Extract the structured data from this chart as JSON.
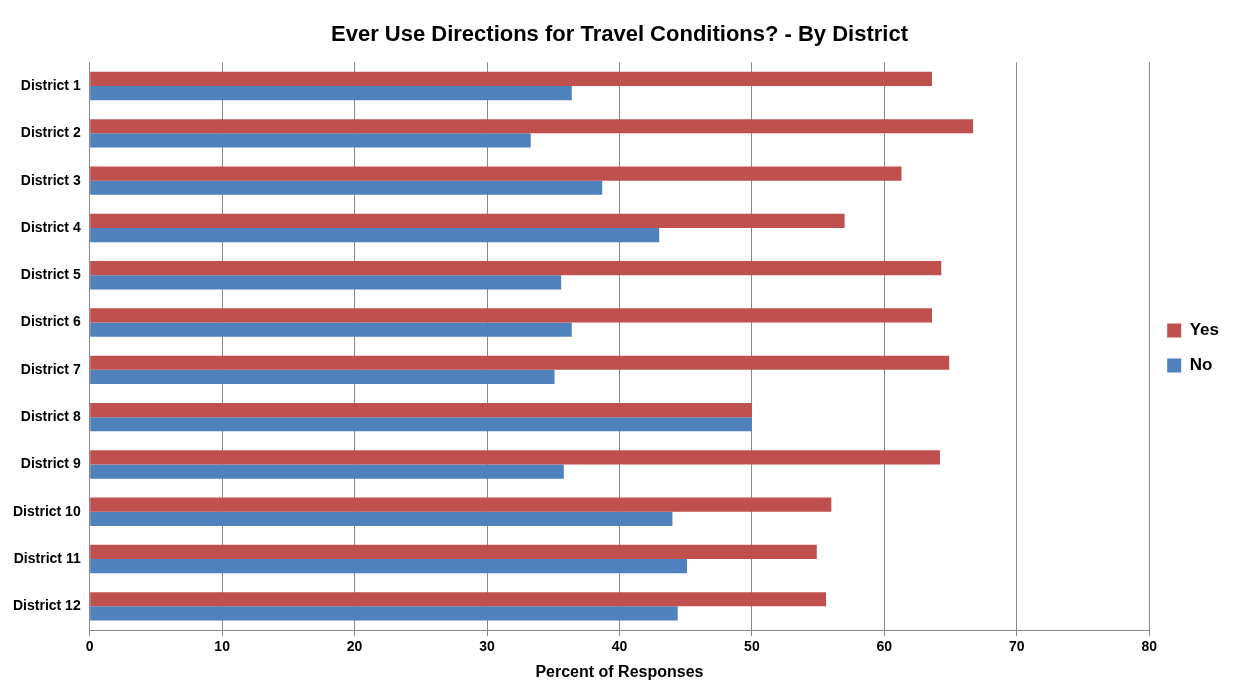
{
  "chart_data": {
    "type": "bar",
    "orientation": "horizontal",
    "title": "Ever Use Directions for Travel Conditions? - By District",
    "xlabel": "Percent of Responses",
    "categories": [
      "District 1",
      "District 2",
      "District 3",
      "District 4",
      "District 5",
      "District 6",
      "District 7",
      "District 8",
      "District 9",
      "District 10",
      "District 11",
      "District 12"
    ],
    "series": [
      {
        "name": "Yes",
        "color": "#c0504d",
        "values": [
          63.6,
          66.7,
          61.3,
          57.0,
          64.3,
          63.6,
          64.9,
          50,
          64.2,
          56.0,
          54.9,
          55.6
        ]
      },
      {
        "name": "No",
        "color": "#4f81bd",
        "values": [
          36.4,
          33.3,
          38.7,
          43.0,
          35.6,
          36.4,
          35.1,
          50,
          35.8,
          44.0,
          45.1,
          44.4
        ]
      }
    ],
    "xlim": [
      0,
      80
    ],
    "xticks": [
      0,
      10,
      20,
      30,
      40,
      50,
      60,
      70,
      80
    ],
    "grid": "x",
    "legend": "right"
  }
}
